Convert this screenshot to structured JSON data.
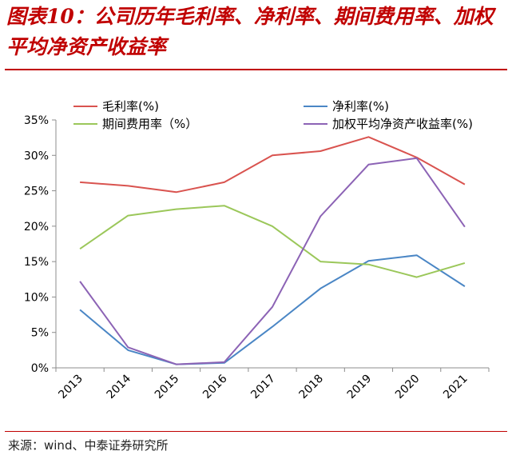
{
  "header": {
    "title": "图表10：公司历年毛利率、净利率、期间费用率、加权平均净资产收益率"
  },
  "footer": {
    "source": "来源：wind、中泰证券研究所"
  },
  "colors": {
    "title": "#c00000",
    "series": [
      "#d9534f",
      "#4a86c5",
      "#9bc75a",
      "#8c63b5"
    ]
  },
  "chart_data": {
    "type": "line",
    "title": "",
    "xlabel": "",
    "ylabel": "",
    "ylim": [
      0,
      35
    ],
    "y_ticks": [
      "0%",
      "5%",
      "10%",
      "15%",
      "20%",
      "25%",
      "30%",
      "35%"
    ],
    "grid": false,
    "legend_position": "top",
    "x": [
      "2013",
      "2014",
      "2015",
      "2016",
      "2017",
      "2018",
      "2019",
      "2020",
      "2021"
    ],
    "series": [
      {
        "name": "毛利率(%)",
        "color": "#d9534f",
        "values": [
          26.2,
          25.7,
          24.8,
          26.2,
          30.0,
          30.6,
          32.6,
          29.7,
          25.9
        ]
      },
      {
        "name": "净利率(%)",
        "color": "#4a86c5",
        "values": [
          8.2,
          2.5,
          0.5,
          0.7,
          5.8,
          11.2,
          15.1,
          15.9,
          11.5
        ]
      },
      {
        "name": "期间费用率（%）",
        "color": "#9bc75a",
        "values": [
          16.8,
          21.5,
          22.4,
          22.9,
          20.0,
          15.0,
          14.6,
          12.8,
          14.8
        ]
      },
      {
        "name": "加权平均净资产收益率(%)",
        "color": "#8c63b5",
        "values": [
          12.2,
          2.9,
          0.5,
          0.8,
          8.6,
          21.4,
          28.7,
          29.6,
          19.9
        ]
      }
    ]
  }
}
